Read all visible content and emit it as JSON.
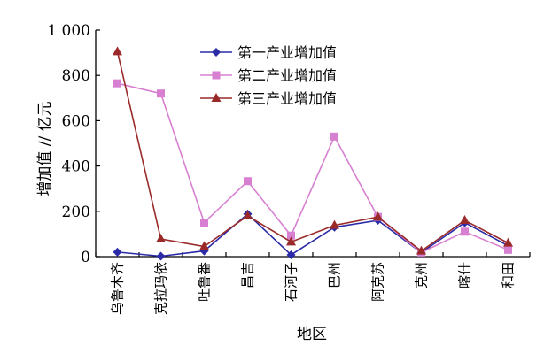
{
  "chart_data": {
    "type": "line",
    "title": "",
    "xlabel": "地区",
    "ylabel": "增加值 // 亿元",
    "ylim": [
      0,
      1000
    ],
    "yticks": [
      0,
      200,
      400,
      600,
      800,
      1000
    ],
    "ytick_labels": [
      "0",
      "200",
      "400",
      "600",
      "800",
      "1 000"
    ],
    "categories": [
      "乌鲁木齐",
      "克拉玛依",
      "吐鲁番",
      "昌吉",
      "石河子",
      "巴州",
      "阿克苏",
      "克州",
      "喀什",
      "和田"
    ],
    "grid": false,
    "legend_position": "top-center",
    "series": [
      {
        "name": "第一产业增加值",
        "color": "#2b2ba8",
        "marker": "diamond",
        "values": [
          20,
          2,
          25,
          188,
          8,
          130,
          160,
          18,
          150,
          48
        ]
      },
      {
        "name": "第二产业增加值",
        "color": "#d77fd0",
        "marker": "square",
        "values": [
          765,
          720,
          150,
          333,
          93,
          530,
          175,
          18,
          110,
          30
        ]
      },
      {
        "name": "第三产业增加值",
        "color": "#9a2a2a",
        "marker": "triangle",
        "values": [
          905,
          78,
          45,
          180,
          65,
          138,
          175,
          25,
          160,
          60
        ]
      }
    ]
  }
}
